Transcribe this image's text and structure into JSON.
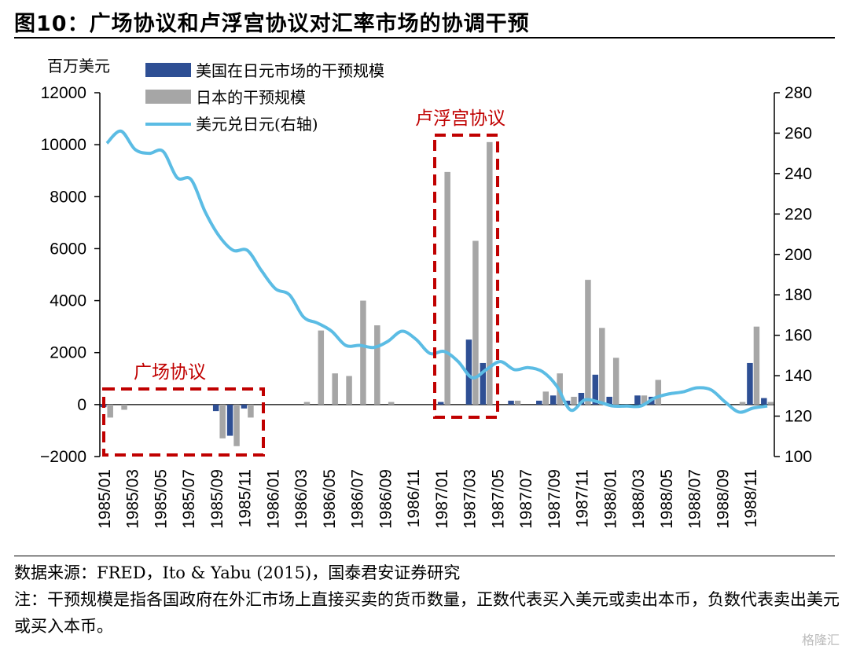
{
  "title": "图10：广场协议和卢浮宫协议对汇率市场的协调干预",
  "source": "数据来源：FRED，Ito & Yabu (2015)，国泰君安证券研究",
  "note": "注：干预规模是指各国政府在外汇市场上直接买卖的货币数量，正数代表买入美元或卖出本币，负数代表卖出美元或买入本币。",
  "watermark": "格隆汇",
  "colors": {
    "us": "#2e4f94",
    "japan": "#a6a6a6",
    "fx": "#5bbce4",
    "annotation": "#c00000"
  },
  "chart_data": {
    "type": "bar",
    "title": "",
    "ylabel": "百万美元",
    "y2label": "",
    "ylim": [
      -2000,
      12000
    ],
    "y2lim": [
      100,
      280
    ],
    "yticks": [
      -2000,
      0,
      2000,
      4000,
      6000,
      8000,
      10000,
      12000
    ],
    "y2ticks": [
      100,
      120,
      140,
      160,
      180,
      200,
      220,
      240,
      260,
      280
    ],
    "categories": [
      "1985/01",
      "1985/02",
      "1985/03",
      "1985/04",
      "1985/05",
      "1985/06",
      "1985/07",
      "1985/08",
      "1985/09",
      "1985/10",
      "1985/11",
      "1985/12",
      "1986/01",
      "1986/02",
      "1986/03",
      "1986/04",
      "1986/05",
      "1986/06",
      "1986/07",
      "1986/08",
      "1986/09",
      "1986/10",
      "1986/11",
      "1986/12",
      "1987/01",
      "1987/02",
      "1987/03",
      "1987/04",
      "1987/05",
      "1987/06",
      "1987/07",
      "1987/08",
      "1987/09",
      "1987/10",
      "1987/11",
      "1987/12",
      "1988/01",
      "1988/02",
      "1988/03",
      "1988/04",
      "1988/05",
      "1988/06",
      "1988/07",
      "1988/08",
      "1988/09",
      "1988/10",
      "1988/11",
      "1988/12"
    ],
    "xtick_labels": [
      "1985/01",
      "1985/03",
      "1985/05",
      "1985/07",
      "1985/09",
      "1985/11",
      "1986/01",
      "1986/03",
      "1986/05",
      "1986/07",
      "1986/09",
      "1986/11",
      "1987/01",
      "1987/03",
      "1987/05",
      "1987/07",
      "1987/09",
      "1987/11",
      "1988/01",
      "1988/03",
      "1988/05",
      "1988/07",
      "1988/09",
      "1988/11"
    ],
    "series": [
      {
        "name": "美国在日元市场的干预规模",
        "kind": "bar",
        "axis": "left",
        "values": [
          -100,
          0,
          0,
          0,
          0,
          0,
          0,
          0,
          -250,
          -1200,
          -150,
          0,
          0,
          0,
          0,
          0,
          0,
          0,
          0,
          0,
          0,
          0,
          0,
          0,
          100,
          0,
          2500,
          1600,
          0,
          150,
          0,
          150,
          350,
          150,
          450,
          1150,
          300,
          0,
          350,
          300,
          0,
          0,
          0,
          0,
          0,
          0,
          1600,
          250
        ]
      },
      {
        "name": "日本的干预规模",
        "kind": "bar",
        "axis": "left",
        "values": [
          -500,
          -200,
          0,
          0,
          0,
          0,
          0,
          0,
          -1300,
          -1600,
          -500,
          0,
          0,
          0,
          100,
          2850,
          1200,
          1100,
          4000,
          3050,
          100,
          0,
          0,
          0,
          8950,
          0,
          6300,
          10100,
          0,
          150,
          0,
          500,
          1200,
          300,
          4800,
          2950,
          1800,
          0,
          350,
          950,
          0,
          0,
          0,
          0,
          0,
          100,
          3000,
          100
        ]
      },
      {
        "name": "美元兑日元(右轴)",
        "kind": "line",
        "axis": "right",
        "values": [
          255,
          261,
          252,
          250,
          251,
          238,
          237,
          221,
          209,
          202,
          202,
          192,
          183,
          180,
          169,
          166,
          162,
          155,
          155,
          154,
          157,
          162,
          158,
          151,
          152,
          147,
          139,
          143,
          147,
          143,
          144,
          142,
          135,
          123,
          128,
          127,
          125,
          125,
          125,
          129,
          131,
          132,
          134,
          133,
          127,
          122,
          124,
          125
        ]
      }
    ],
    "annotations": [
      {
        "label": "广场协议",
        "from": "1985/01",
        "to": "1985/12"
      },
      {
        "label": "卢浮宫协议",
        "from": "1987/01",
        "to": "1987/05"
      }
    ],
    "legend_position": "top-left",
    "grid": false
  }
}
